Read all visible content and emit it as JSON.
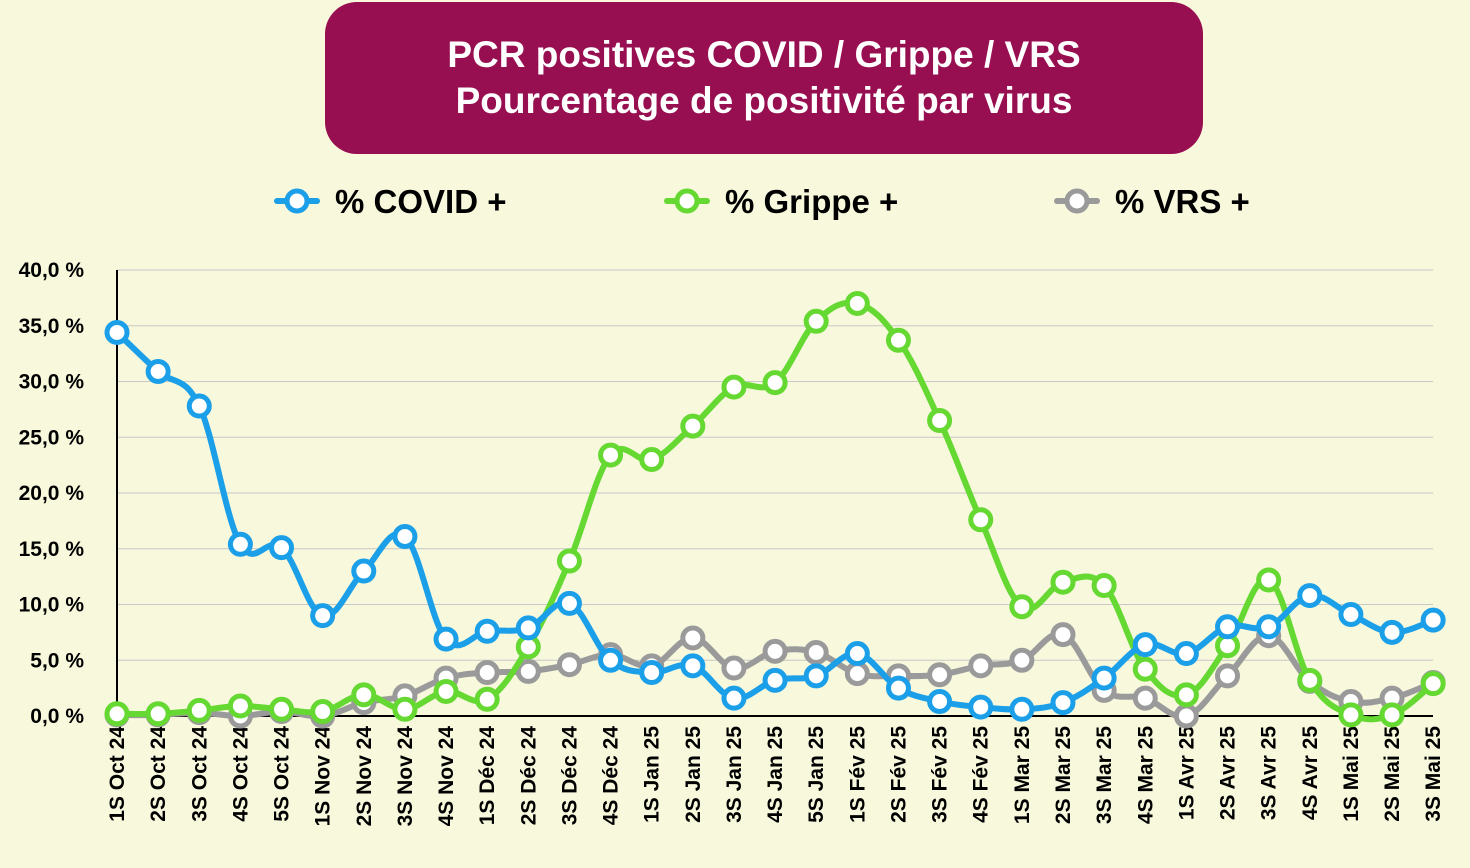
{
  "chart_data": {
    "type": "line",
    "title": "PCR positives COVID / Grippe / VRS",
    "subtitle": "Pourcentage de positivité par virus",
    "legend_position": "top",
    "grid": true,
    "ylim": [
      0,
      40
    ],
    "yticks": [
      "0,0 %",
      "5,0 %",
      "10,0 %",
      "15,0 %",
      "20,0 %",
      "25,0 %",
      "30,0 %",
      "35,0 %",
      "40,0 %"
    ],
    "categories": [
      "1S Oct 24",
      "2S Oct 24",
      "3S Oct 24",
      "4S Oct 24",
      "5S Oct 24",
      "1S Nov 24",
      "2S Nov 24",
      "3S Nov 24",
      "4S Nov 24",
      "1S Déc 24",
      "2S Déc 24",
      "3S Déc 24",
      "4S Déc 24",
      "1S Jan 25",
      "2S Jan 25",
      "3S Jan 25",
      "4S Jan 25",
      "5S Jan 25",
      "1S Fév 25",
      "2S Fév 25",
      "3S Fév 25",
      "4S Fév 25",
      "1S Mar 25",
      "2S Mar 25",
      "3S Mar 25",
      "4S Mar 25",
      "1S Avr 25",
      "2S Avr 25",
      "3S Avr 25",
      "4S Avr 25",
      "1S Mai 25",
      "2S Mai 25",
      "3S Mai 25"
    ],
    "series": [
      {
        "name": "% COVID +",
        "color": "#1a9fe8",
        "values": [
          34.4,
          30.9,
          27.8,
          15.4,
          15.1,
          9.0,
          13.0,
          16.1,
          6.9,
          7.6,
          7.9,
          10.1,
          5.0,
          3.9,
          4.5,
          1.6,
          3.2,
          3.6,
          5.6,
          2.5,
          1.3,
          0.8,
          0.6,
          1.2,
          3.4,
          6.4,
          5.6,
          8.0,
          8.0,
          10.8,
          9.1,
          7.5,
          8.6
        ]
      },
      {
        "name": "% Grippe +",
        "color": "#65d832",
        "values": [
          0.2,
          0.2,
          0.5,
          0.9,
          0.6,
          0.4,
          1.9,
          0.6,
          2.2,
          1.5,
          6.2,
          13.9,
          23.4,
          23.0,
          26.0,
          29.5,
          29.9,
          35.4,
          37.0,
          33.7,
          26.5,
          17.6,
          9.8,
          12.0,
          11.7,
          4.2,
          1.9,
          6.3,
          12.2,
          3.2,
          0.1,
          0.1,
          2.9
        ]
      },
      {
        "name": "% VRS +",
        "color": "#9a9a9a",
        "values": [
          0.1,
          0.1,
          0.3,
          0.0,
          0.4,
          0.0,
          1.2,
          1.8,
          3.4,
          3.9,
          4.0,
          4.6,
          5.5,
          4.5,
          7.0,
          4.3,
          5.8,
          5.7,
          3.8,
          3.6,
          3.7,
          4.5,
          5.0,
          7.3,
          2.3,
          1.6,
          0.0,
          3.6,
          7.2,
          3.1,
          1.3,
          1.6,
          3.0
        ]
      }
    ]
  }
}
